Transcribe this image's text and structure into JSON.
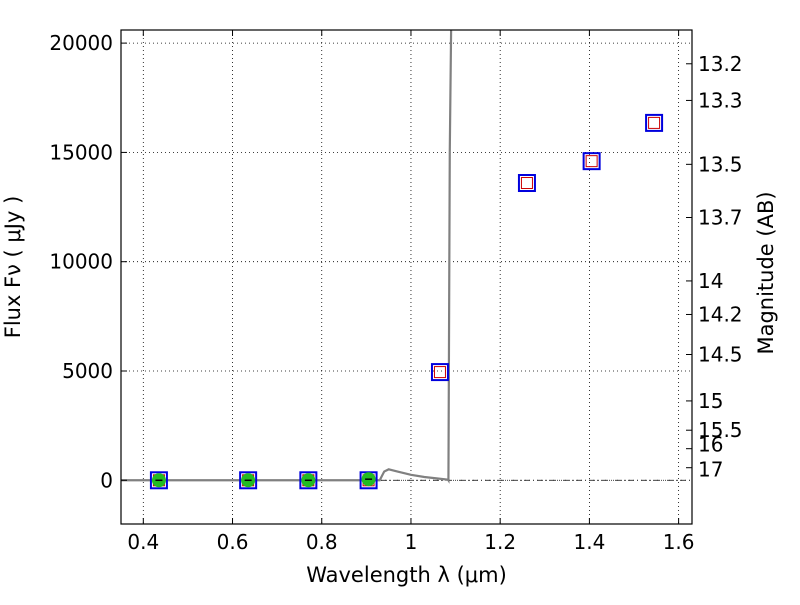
{
  "chart_data": {
    "type": "scatter",
    "xlabel": "Wavelength  λ (μm)",
    "ylabel": "Flux  Fν ( μJy )",
    "y2label": "Magnitude (AB)",
    "xlim": [
      0.35,
      1.63
    ],
    "ylim": [
      -2000,
      20600
    ],
    "grid": true,
    "xticks": [
      0.4,
      0.6,
      0.8,
      1.0,
      1.2,
      1.4,
      1.6
    ],
    "xtick_labels": [
      "0.4",
      "0.6",
      "0.8",
      "1",
      "1.2",
      "1.4",
      "1.6"
    ],
    "yticks": [
      0,
      5000,
      10000,
      15000,
      20000
    ],
    "ytick_labels": [
      "0",
      "5000",
      "10000",
      "15000",
      "20000"
    ],
    "magnitude_ticks": [
      "13.2",
      "13.3",
      "13.5",
      "13.7",
      "14",
      "14.2",
      "14.5",
      "15",
      "15.5",
      "16",
      "17"
    ],
    "observed_points": {
      "x": [
        0.435,
        0.635,
        0.77,
        0.905
      ],
      "y": [
        0,
        0,
        0,
        50
      ]
    },
    "model_points": {
      "x": [
        0.435,
        0.635,
        0.77,
        0.905,
        1.065,
        1.26,
        1.405,
        1.545
      ],
      "y": [
        0,
        0,
        0,
        0,
        4950,
        13600,
        14600,
        16350
      ]
    },
    "sed_curve": {
      "x": [
        0.35,
        0.93,
        0.935,
        0.94,
        0.95,
        0.97,
        1.0,
        1.03,
        1.06,
        1.083,
        1.084,
        1.087,
        1.09
      ],
      "y": [
        0,
        0,
        200,
        400,
        500,
        400,
        250,
        150,
        80,
        30,
        0,
        15000,
        20600
      ]
    },
    "reference_line_y": 0,
    "colors": {
      "sed_curve": "#808080",
      "observed_fill": "#22bb22",
      "model_outer_box": "#0000dd",
      "model_inner_box": "#cc0000",
      "reference_line": "#000000"
    }
  }
}
